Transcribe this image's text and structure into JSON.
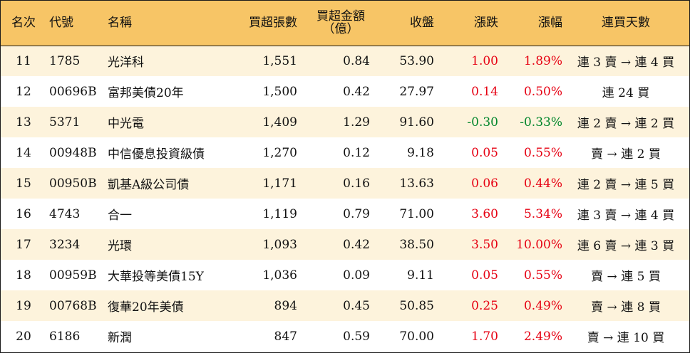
{
  "headers": {
    "rank": "名次",
    "code": "代號",
    "name": "名稱",
    "buy_lots": "買超張數",
    "buy_amount_line1": "買超金額",
    "buy_amount_line2": "（億）",
    "close": "收盤",
    "change": "漲跌",
    "pct": "漲幅",
    "days": "連買天數"
  },
  "colors": {
    "header_bg": "#f7c566",
    "odd_row_bg": "#fdf3dc",
    "up": "#e60012",
    "down": "#00852a"
  },
  "rows": [
    {
      "rank": "11",
      "code": "1785",
      "name": "光洋科",
      "buy_lots": "1,551",
      "buy_amount": "0.84",
      "close": "53.90",
      "change": "1.00",
      "pct": "1.89%",
      "days": "連 3 賣 → 連 4 買",
      "dir": "up"
    },
    {
      "rank": "12",
      "code": "00696B",
      "name": "富邦美債20年",
      "buy_lots": "1,500",
      "buy_amount": "0.42",
      "close": "27.97",
      "change": "0.14",
      "pct": "0.50%",
      "days": "連 24 買",
      "dir": "up"
    },
    {
      "rank": "13",
      "code": "5371",
      "name": "中光電",
      "buy_lots": "1,409",
      "buy_amount": "1.29",
      "close": "91.60",
      "change": "-0.30",
      "pct": "-0.33%",
      "days": "連 2 賣 → 連 2 買",
      "dir": "down"
    },
    {
      "rank": "14",
      "code": "00948B",
      "name": "中信優息投資級債",
      "buy_lots": "1,270",
      "buy_amount": "0.12",
      "close": "9.18",
      "change": "0.05",
      "pct": "0.55%",
      "days": "賣 → 連 2 買",
      "dir": "up"
    },
    {
      "rank": "15",
      "code": "00950B",
      "name": "凱基A級公司債",
      "buy_lots": "1,171",
      "buy_amount": "0.16",
      "close": "13.63",
      "change": "0.06",
      "pct": "0.44%",
      "days": "連 2 賣 → 連 5 買",
      "dir": "up"
    },
    {
      "rank": "16",
      "code": "4743",
      "name": "合一",
      "buy_lots": "1,119",
      "buy_amount": "0.79",
      "close": "71.00",
      "change": "3.60",
      "pct": "5.34%",
      "days": "連 3 賣 → 連 4 買",
      "dir": "up"
    },
    {
      "rank": "17",
      "code": "3234",
      "name": "光環",
      "buy_lots": "1,093",
      "buy_amount": "0.42",
      "close": "38.50",
      "change": "3.50",
      "pct": "10.00%",
      "days": "連 6 賣 → 連 3 買",
      "dir": "up"
    },
    {
      "rank": "18",
      "code": "00959B",
      "name": "大華投等美債15Y",
      "buy_lots": "1,036",
      "buy_amount": "0.09",
      "close": "9.11",
      "change": "0.05",
      "pct": "0.55%",
      "days": "賣 → 連 5 買",
      "dir": "up"
    },
    {
      "rank": "19",
      "code": "00768B",
      "name": "復華20年美債",
      "buy_lots": "894",
      "buy_amount": "0.45",
      "close": "50.85",
      "change": "0.25",
      "pct": "0.49%",
      "days": "賣 → 連 8 買",
      "dir": "up"
    },
    {
      "rank": "20",
      "code": "6186",
      "name": "新潤",
      "buy_lots": "847",
      "buy_amount": "0.59",
      "close": "70.00",
      "change": "1.70",
      "pct": "2.49%",
      "days": "賣 → 連 10 買",
      "dir": "up"
    }
  ]
}
